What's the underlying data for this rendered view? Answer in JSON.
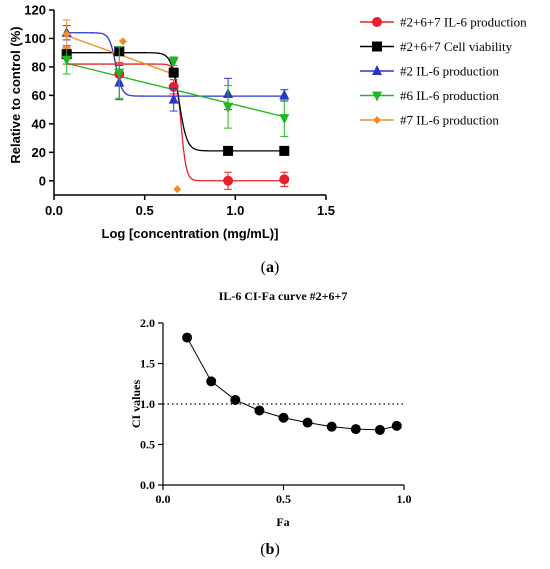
{
  "chart_data": [
    {
      "type": "line",
      "panel_label": "a",
      "xlabel": "Log [concentration (mg/mL)]",
      "ylabel": "Relative to control (%)",
      "xlim": [
        0,
        1.5
      ],
      "ylim": [
        -10,
        120
      ],
      "x_ticks": [
        "0.0",
        "0.5",
        "1.0",
        "1.5"
      ],
      "y_ticks": [
        "0",
        "20",
        "40",
        "60",
        "80",
        "100",
        "120"
      ],
      "legend_position": "right",
      "series": [
        {
          "name": "#2+6+7 IL-6 production",
          "color": "#e8202a",
          "marker": "circle",
          "x": [
            0.07,
            0.36,
            0.66,
            0.96,
            1.27
          ],
          "y": [
            88,
            75,
            66,
            0,
            1
          ],
          "err": [
            6,
            8,
            5,
            6,
            5
          ],
          "fit": {
            "top": 82,
            "bottom": 0,
            "logec50": 0.7,
            "hill": 30
          }
        },
        {
          "name": "#2+6+7 Cell viability",
          "color": "#000000",
          "marker": "square",
          "x": [
            0.07,
            0.36,
            0.66,
            0.96,
            1.27
          ],
          "y": [
            89,
            91,
            76,
            21,
            21
          ],
          "err": [
            3,
            2,
            3,
            0,
            0
          ],
          "fit": {
            "top": 90,
            "bottom": 21,
            "logec50": 0.69,
            "hill": 20
          }
        },
        {
          "name": "#2 IL-6 production",
          "color": "#2b35c8",
          "marker": "triangle-up",
          "x": [
            0.07,
            0.36,
            0.66,
            0.96,
            1.27
          ],
          "y": [
            104,
            69,
            57,
            61,
            60
          ],
          "err": [
            5,
            12,
            8,
            11,
            4
          ],
          "fit": {
            "top": 104,
            "bottom": 59.5,
            "logec50": 0.34,
            "hill": 25
          }
        },
        {
          "name": "#6 IL-6 production",
          "color": "#1fb81f",
          "marker": "triangle-down",
          "x": [
            0.07,
            0.36,
            0.66,
            0.96,
            1.27
          ],
          "y": [
            85,
            76,
            84,
            52,
            44
          ],
          "err": [
            10,
            18,
            3,
            15,
            13
          ],
          "fit": {
            "linear": [
              0.07,
              82.5,
              1.27,
              45
            ]
          }
        },
        {
          "name": "#7 IL-6 production",
          "color": "#f28c1e",
          "marker": "diamond",
          "x": [
            0.07,
            0.38,
            0.68
          ],
          "y": [
            103,
            98,
            -6
          ],
          "err": [
            10,
            0,
            0
          ],
          "fit": {
            "linear": [
              0.07,
              102,
              0.68,
              74
            ]
          }
        }
      ]
    },
    {
      "type": "line",
      "panel_label": "b",
      "title": "IL-6 CI-Fa curve #2+6+7",
      "xlabel": "Fa",
      "ylabel": "CI values",
      "xlim": [
        0,
        1.0
      ],
      "ylim": [
        0,
        2.0
      ],
      "x_ticks": [
        "0.0",
        "0.5",
        "1.0"
      ],
      "y_ticks": [
        "0.0",
        "0.5",
        "1.0",
        "1.5",
        "2.0"
      ],
      "reference_line": {
        "y": 1.0,
        "style": "dotted"
      },
      "series": [
        {
          "marker": "circle",
          "color": "#000000",
          "x": [
            0.1,
            0.2,
            0.3,
            0.4,
            0.5,
            0.6,
            0.7,
            0.8,
            0.9,
            0.97
          ],
          "y": [
            1.82,
            1.28,
            1.05,
            0.92,
            0.83,
            0.77,
            0.72,
            0.69,
            0.68,
            0.73
          ]
        }
      ]
    }
  ]
}
